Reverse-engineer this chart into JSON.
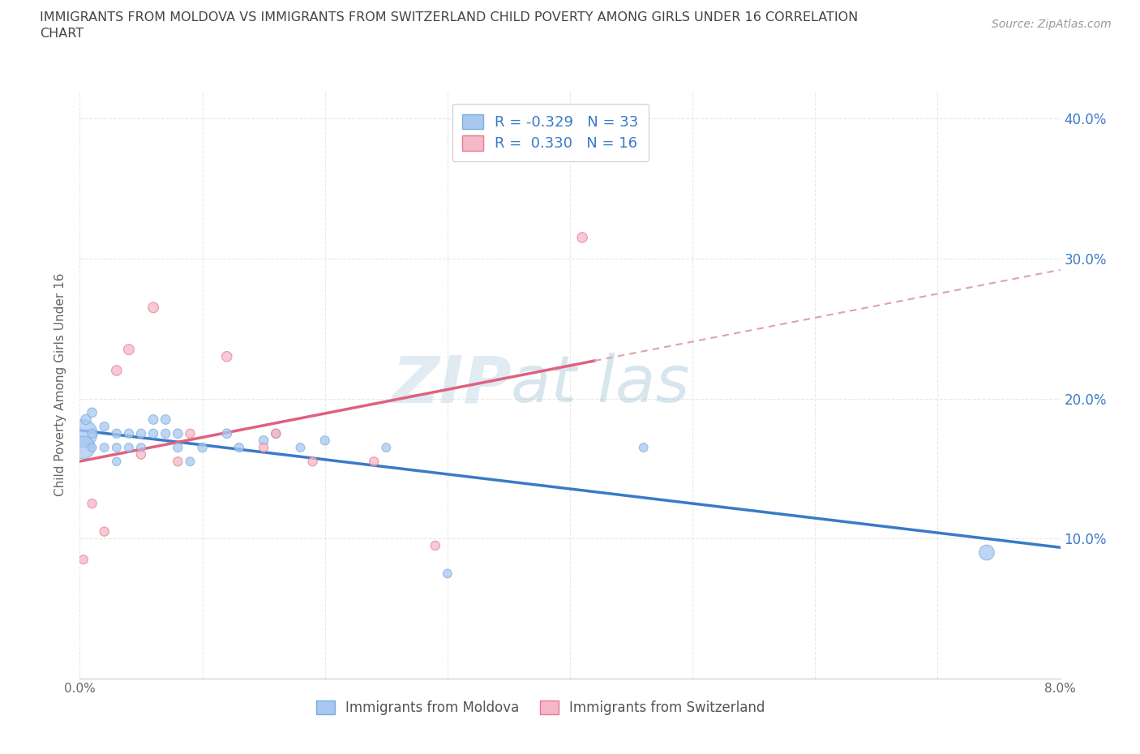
{
  "title_line1": "IMMIGRANTS FROM MOLDOVA VS IMMIGRANTS FROM SWITZERLAND CHILD POVERTY AMONG GIRLS UNDER 16 CORRELATION",
  "title_line2": "CHART",
  "source": "Source: ZipAtlas.com",
  "ylabel": "Child Poverty Among Girls Under 16",
  "xlim": [
    0.0,
    0.08
  ],
  "ylim": [
    0.0,
    0.42
  ],
  "xticks": [
    0.0,
    0.01,
    0.02,
    0.03,
    0.04,
    0.05,
    0.06,
    0.07,
    0.08
  ],
  "yticks": [
    0.0,
    0.1,
    0.2,
    0.3,
    0.4
  ],
  "ytick_labels": [
    "",
    "10.0%",
    "20.0%",
    "30.0%",
    "40.0%"
  ],
  "xtick_labels": [
    "0.0%",
    "",
    "",
    "",
    "",
    "",
    "",
    "",
    "8.0%"
  ],
  "moldova_color": "#a8c8f0",
  "moldova_edge_color": "#7aaddf",
  "switzerland_color": "#f5b8c8",
  "switzerland_edge_color": "#e87a90",
  "moldova_R": -0.329,
  "moldova_N": 33,
  "switzerland_R": 0.33,
  "switzerland_N": 16,
  "moldova_scatter_x": [
    0.0003,
    0.0003,
    0.0005,
    0.001,
    0.001,
    0.001,
    0.002,
    0.002,
    0.003,
    0.003,
    0.003,
    0.004,
    0.004,
    0.005,
    0.005,
    0.006,
    0.006,
    0.007,
    0.007,
    0.008,
    0.008,
    0.009,
    0.01,
    0.012,
    0.013,
    0.015,
    0.016,
    0.018,
    0.02,
    0.025,
    0.03,
    0.046,
    0.074
  ],
  "moldova_scatter_y": [
    0.175,
    0.165,
    0.185,
    0.19,
    0.175,
    0.165,
    0.18,
    0.165,
    0.175,
    0.165,
    0.155,
    0.175,
    0.165,
    0.175,
    0.165,
    0.185,
    0.175,
    0.185,
    0.175,
    0.175,
    0.165,
    0.155,
    0.165,
    0.175,
    0.165,
    0.17,
    0.175,
    0.165,
    0.17,
    0.165,
    0.075,
    0.165,
    0.09
  ],
  "moldova_scatter_sizes": [
    600,
    400,
    80,
    70,
    65,
    60,
    65,
    60,
    65,
    60,
    55,
    65,
    60,
    65,
    60,
    70,
    65,
    70,
    65,
    70,
    65,
    60,
    65,
    70,
    65,
    70,
    65,
    60,
    65,
    60,
    60,
    60,
    180
  ],
  "switzerland_scatter_x": [
    0.0003,
    0.001,
    0.002,
    0.003,
    0.004,
    0.005,
    0.006,
    0.008,
    0.009,
    0.012,
    0.015,
    0.016,
    0.019,
    0.024,
    0.029,
    0.041
  ],
  "switzerland_scatter_y": [
    0.085,
    0.125,
    0.105,
    0.22,
    0.235,
    0.16,
    0.265,
    0.155,
    0.175,
    0.23,
    0.165,
    0.175,
    0.155,
    0.155,
    0.095,
    0.315
  ],
  "switzerland_scatter_sizes": [
    60,
    65,
    65,
    80,
    85,
    65,
    85,
    65,
    65,
    80,
    65,
    65,
    65,
    65,
    65,
    80
  ],
  "background_color": "#ffffff",
  "watermark_color": "#cce6f0",
  "grid_color": "#e8e8e8",
  "moldova_line_color": "#3a7ac8",
  "switzerland_line_color": "#e06080",
  "switzerland_dashed_color": "#e0a0b0",
  "trend_extend_dashes": [
    4,
    3
  ]
}
